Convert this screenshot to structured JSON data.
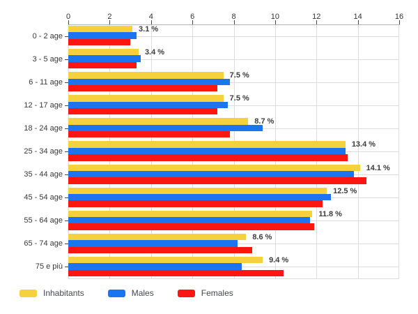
{
  "chart_data": {
    "type": "bar",
    "orientation": "horizontal",
    "title": "",
    "xlabel": "",
    "ylabel": "",
    "xlim": [
      0,
      16
    ],
    "x_ticks": [
      0,
      2,
      4,
      6,
      8,
      10,
      12,
      14,
      16
    ],
    "grid": true,
    "legend_position": "bottom-left",
    "categories": [
      "0 - 2 age",
      "3 - 5 age",
      "6 - 11 age",
      "12 - 17 age",
      "18 - 24 age",
      "25 - 34 age",
      "35 - 44 age",
      "45 - 54 age",
      "55 - 64 age",
      "65 - 74 age",
      "75 e più"
    ],
    "series": [
      {
        "name": "Inhabitants",
        "color": "#F5D23D",
        "values": [
          3.1,
          3.4,
          7.5,
          7.5,
          8.7,
          13.4,
          14.1,
          12.5,
          11.8,
          8.6,
          9.4
        ]
      },
      {
        "name": "Males",
        "color": "#1B75F0",
        "values": [
          3.3,
          3.5,
          7.8,
          7.7,
          9.4,
          13.4,
          13.8,
          12.7,
          11.7,
          8.2,
          8.4
        ]
      },
      {
        "name": "Females",
        "color": "#FB1711",
        "values": [
          3.0,
          3.3,
          7.2,
          7.2,
          7.8,
          13.5,
          14.4,
          12.3,
          11.9,
          8.9,
          10.4
        ]
      }
    ],
    "data_labels": [
      "3.1 %",
      "3.4 %",
      "7.5 %",
      "7.5 %",
      "8.7 %",
      "13.4 %",
      "14.1 %",
      "12.5 %",
      "11.8 %",
      "8.6 %",
      "9.4 %"
    ]
  }
}
